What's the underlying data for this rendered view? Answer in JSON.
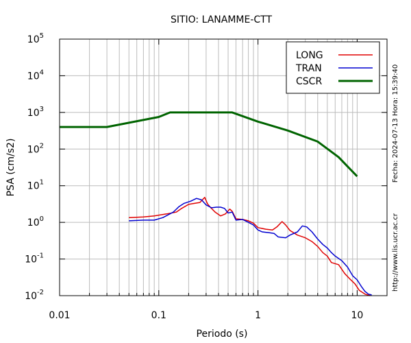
{
  "colors": {
    "long": "#e00000",
    "tran": "#0000d0",
    "cscr": "#006400",
    "grid": "#bbbbbb",
    "axis": "#000000"
  },
  "chart_data": {
    "type": "line",
    "title": "SITIO: LANAMME-CTT",
    "xlabel": "Periodo (s)",
    "ylabel": "PSA (cm/s2)",
    "x_scale": "log",
    "y_scale": "log",
    "xlim": [
      0.01,
      20
    ],
    "ylim": [
      0.01,
      100000
    ],
    "x_ticks": [
      {
        "value": 0.01,
        "label": "0.01"
      },
      {
        "value": 0.1,
        "label": "0.1"
      },
      {
        "value": 1,
        "label": "1"
      },
      {
        "value": 10,
        "label": "10"
      }
    ],
    "y_ticks": [
      {
        "value": 0.01,
        "base": "10",
        "exp": "-2"
      },
      {
        "value": 0.1,
        "base": "10",
        "exp": "-1"
      },
      {
        "value": 1,
        "base": "10",
        "exp": "0"
      },
      {
        "value": 10,
        "base": "10",
        "exp": "1"
      },
      {
        "value": 100,
        "base": "10",
        "exp": "2"
      },
      {
        "value": 1000,
        "base": "10",
        "exp": "3"
      },
      {
        "value": 10000,
        "base": "10",
        "exp": "4"
      },
      {
        "value": 100000,
        "base": "10",
        "exp": "5"
      }
    ],
    "grid": true,
    "legend_position": "top-right",
    "side_notes": {
      "date": "Fecha: 2024-07-13 Hora: 15:39:40",
      "url": "http://www.lis.ucr.ac.cr"
    },
    "series": [
      {
        "name": "LONG",
        "color_key": "long",
        "width": 1.5,
        "points": [
          [
            0.05,
            1.35
          ],
          [
            0.07,
            1.4
          ],
          [
            0.09,
            1.5
          ],
          [
            0.12,
            1.7
          ],
          [
            0.15,
            1.9
          ],
          [
            0.17,
            2.4
          ],
          [
            0.2,
            3.1
          ],
          [
            0.23,
            3.3
          ],
          [
            0.26,
            3.5
          ],
          [
            0.29,
            4.8
          ],
          [
            0.31,
            3.2
          ],
          [
            0.33,
            2.6
          ],
          [
            0.37,
            1.9
          ],
          [
            0.42,
            1.5
          ],
          [
            0.47,
            1.7
          ],
          [
            0.52,
            2.3
          ],
          [
            0.55,
            2.0
          ],
          [
            0.6,
            1.25
          ],
          [
            0.7,
            1.2
          ],
          [
            0.8,
            1.1
          ],
          [
            0.9,
            0.95
          ],
          [
            1.0,
            0.72
          ],
          [
            1.2,
            0.65
          ],
          [
            1.4,
            0.62
          ],
          [
            1.55,
            0.75
          ],
          [
            1.75,
            1.05
          ],
          [
            1.9,
            0.85
          ],
          [
            2.1,
            0.6
          ],
          [
            2.5,
            0.45
          ],
          [
            3.0,
            0.38
          ],
          [
            3.5,
            0.3
          ],
          [
            4.0,
            0.22
          ],
          [
            4.5,
            0.15
          ],
          [
            5.0,
            0.12
          ],
          [
            5.5,
            0.08
          ],
          [
            6.5,
            0.07
          ],
          [
            7.5,
            0.04
          ],
          [
            8.5,
            0.028
          ],
          [
            9.5,
            0.021
          ],
          [
            10.5,
            0.014
          ],
          [
            12,
            0.011
          ],
          [
            13.5,
            0.01
          ]
        ]
      },
      {
        "name": "TRAN",
        "color_key": "tran",
        "width": 1.5,
        "points": [
          [
            0.05,
            1.1
          ],
          [
            0.07,
            1.15
          ],
          [
            0.09,
            1.15
          ],
          [
            0.11,
            1.35
          ],
          [
            0.14,
            1.9
          ],
          [
            0.16,
            2.7
          ],
          [
            0.18,
            3.3
          ],
          [
            0.21,
            3.8
          ],
          [
            0.24,
            4.5
          ],
          [
            0.27,
            4.1
          ],
          [
            0.3,
            3.0
          ],
          [
            0.34,
            2.5
          ],
          [
            0.38,
            2.6
          ],
          [
            0.42,
            2.6
          ],
          [
            0.46,
            2.4
          ],
          [
            0.5,
            1.8
          ],
          [
            0.55,
            1.9
          ],
          [
            0.6,
            1.15
          ],
          [
            0.7,
            1.2
          ],
          [
            0.8,
            1.0
          ],
          [
            0.9,
            0.85
          ],
          [
            1.0,
            0.62
          ],
          [
            1.1,
            0.55
          ],
          [
            1.3,
            0.52
          ],
          [
            1.45,
            0.5
          ],
          [
            1.6,
            0.4
          ],
          [
            1.9,
            0.38
          ],
          [
            2.1,
            0.45
          ],
          [
            2.5,
            0.55
          ],
          [
            2.8,
            0.8
          ],
          [
            3.1,
            0.75
          ],
          [
            3.5,
            0.55
          ],
          [
            4.0,
            0.35
          ],
          [
            4.5,
            0.25
          ],
          [
            5.0,
            0.2
          ],
          [
            5.5,
            0.15
          ],
          [
            6.0,
            0.12
          ],
          [
            7.0,
            0.09
          ],
          [
            8.0,
            0.06
          ],
          [
            9.0,
            0.035
          ],
          [
            10,
            0.027
          ],
          [
            11,
            0.018
          ],
          [
            12,
            0.013
          ],
          [
            13,
            0.011
          ],
          [
            14,
            0.0105
          ]
        ]
      },
      {
        "name": "CSCR",
        "color_key": "cscr",
        "width": 3,
        "points": [
          [
            0.01,
            400
          ],
          [
            0.03,
            400
          ],
          [
            0.1,
            750
          ],
          [
            0.13,
            1000
          ],
          [
            0.55,
            1000
          ],
          [
            1,
            560
          ],
          [
            2,
            320
          ],
          [
            4,
            160
          ],
          [
            6.5,
            60
          ],
          [
            10,
            18
          ]
        ]
      }
    ]
  }
}
